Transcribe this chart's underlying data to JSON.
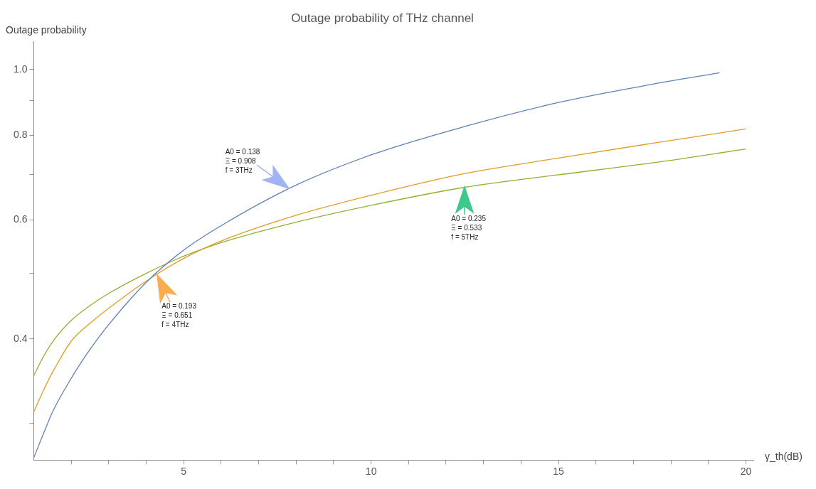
{
  "chart_data": {
    "type": "line",
    "title": "Outage probability of THz channel",
    "xlabel": "γ_th(dB)",
    "ylabel": "Outage probability",
    "log": "y",
    "x": [
      1,
      1.25,
      1.5,
      2,
      2.5,
      3,
      4,
      5,
      6,
      8,
      10,
      12.5,
      15,
      17.5,
      20
    ],
    "series": [
      {
        "color": "#5e81b5",
        "x": [
          1,
          1.25,
          1.5,
          2,
          2.5,
          3,
          4,
          5,
          6,
          8,
          10,
          12.5,
          15,
          17.5,
          19.3
        ],
        "values": [
          0.267,
          0.289,
          0.312,
          0.35,
          0.386,
          0.42,
          0.485,
          0.541,
          0.588,
          0.675,
          0.748,
          0.824,
          0.894,
          0.951,
          0.989
        ]
      },
      {
        "color": "#e19c24",
        "values": [
          0.312,
          0.335,
          0.357,
          0.397,
          0.422,
          0.444,
          0.487,
          0.526,
          0.558,
          0.609,
          0.652,
          0.702,
          0.74,
          0.778,
          0.817
        ]
      },
      {
        "color": "#8fb032",
        "values": [
          0.353,
          0.376,
          0.396,
          0.426,
          0.448,
          0.467,
          0.5,
          0.53,
          0.555,
          0.595,
          0.63,
          0.67,
          0.699,
          0.728,
          0.763
        ]
      }
    ],
    "xlim": [
      1,
      20.2
    ],
    "ylim": [
      0.265,
      1.1
    ],
    "xticks": [
      {
        "value": 2,
        "label": null
      },
      {
        "value": 3,
        "label": null
      },
      {
        "value": 4,
        "label": null
      },
      5,
      {
        "value": 6,
        "label": null
      },
      {
        "value": 7,
        "label": null
      },
      {
        "value": 8,
        "label": null
      },
      {
        "value": 9,
        "label": null
      },
      10,
      {
        "value": 11,
        "label": null
      },
      {
        "value": 12,
        "label": null
      },
      {
        "value": 13,
        "label": null
      },
      {
        "value": 14,
        "label": null
      },
      15,
      {
        "value": 16,
        "label": null
      },
      {
        "value": 17,
        "label": null
      },
      {
        "value": 18,
        "label": null
      },
      {
        "value": 19,
        "label": null
      },
      20
    ],
    "yticks": [
      {
        "value": 0.3,
        "label": null
      },
      0.4,
      {
        "value": 0.5,
        "label": null
      },
      0.6,
      {
        "value": 0.7,
        "label": null
      },
      0.8,
      {
        "value": 0.9,
        "label": null
      },
      {
        "value": 1,
        "label": "1.0"
      }
    ],
    "annotations": [
      {
        "text": "A0 = 0.138\nΞ = 0.908\nf = 3THz",
        "x": 7.8,
        "y": 0.668
      },
      {
        "text": "A0 = 0.193\nΞ = 0.651\nf = 4THz",
        "x": 4.3,
        "y": 0.497
      },
      {
        "text": "A0 = 0.235\nΞ = 0.533\nf = 5THz",
        "x": 12.5,
        "y": 0.67
      }
    ]
  }
}
